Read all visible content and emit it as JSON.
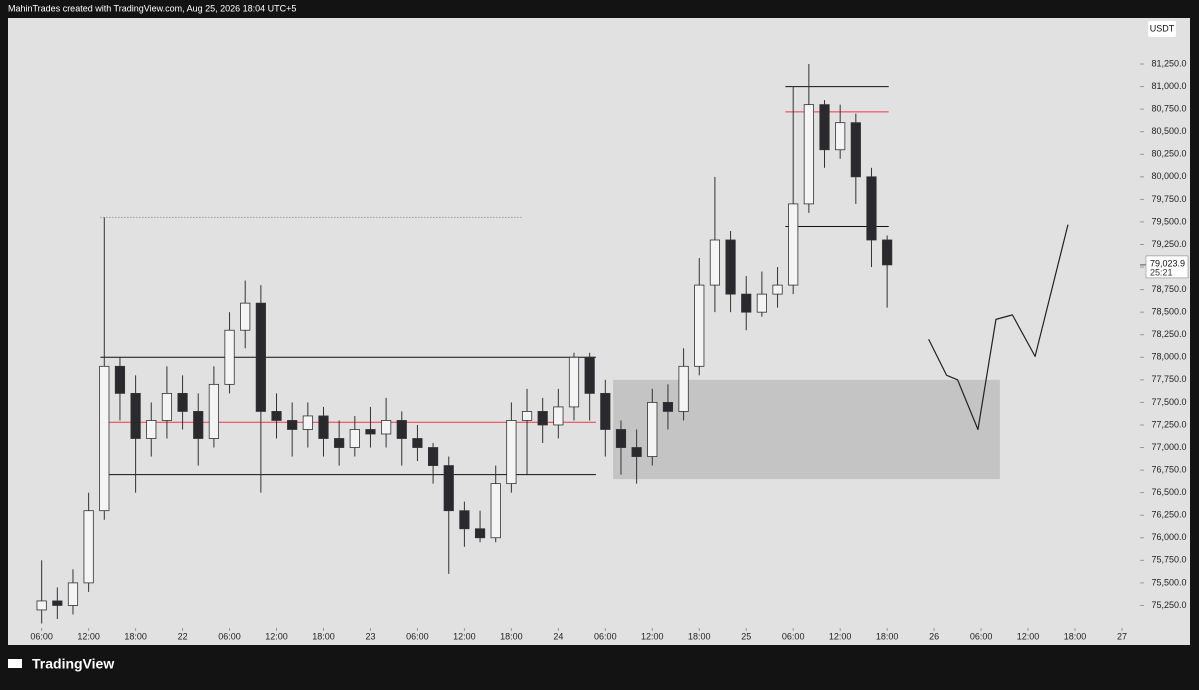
{
  "header": "MahinTrades created with TradingView.com, Aug 25, 2026 18:04 UTC+5",
  "logo": "TradingView",
  "chart_data": {
    "type": "candlestick",
    "currency": "USDT",
    "xlim": [
      -4.3,
      140.3
    ],
    "ylim": [
      75000,
      81760
    ],
    "xticks": [
      {
        "value": 0,
        "label": "06:00"
      },
      {
        "value": 6,
        "label": "12:00"
      },
      {
        "value": 12,
        "label": "18:00"
      },
      {
        "value": 18,
        "label": "22"
      },
      {
        "value": 24,
        "label": "06:00"
      },
      {
        "value": 30,
        "label": "12:00"
      },
      {
        "value": 36,
        "label": "18:00"
      },
      {
        "value": 42,
        "label": "23"
      },
      {
        "value": 48,
        "label": "06:00"
      },
      {
        "value": 54,
        "label": "12:00"
      },
      {
        "value": 60,
        "label": "18:00"
      },
      {
        "value": 66,
        "label": "24"
      },
      {
        "value": 72,
        "label": "06:00"
      },
      {
        "value": 78,
        "label": "12:00"
      },
      {
        "value": 84,
        "label": "18:00"
      },
      {
        "value": 90,
        "label": "25"
      },
      {
        "value": 96,
        "label": "06:00"
      },
      {
        "value": 102,
        "label": "12:00"
      },
      {
        "value": 108,
        "label": "18:00"
      },
      {
        "value": 114,
        "label": "26"
      },
      {
        "value": 120,
        "label": "06:00"
      },
      {
        "value": 126,
        "label": "12:00"
      },
      {
        "value": 132,
        "label": "18:00"
      },
      {
        "value": 138,
        "label": "27"
      }
    ],
    "yticks": [
      {
        "value": 75250,
        "label": "75,250.0"
      },
      {
        "value": 75500,
        "label": "75,500.0"
      },
      {
        "value": 75750,
        "label": "75,750.0"
      },
      {
        "value": 76000,
        "label": "76,000.0"
      },
      {
        "value": 76250,
        "label": "76,250.0"
      },
      {
        "value": 76500,
        "label": "76,500.0"
      },
      {
        "value": 76750,
        "label": "76,750.0"
      },
      {
        "value": 77000,
        "label": "77,000.0"
      },
      {
        "value": 77250,
        "label": "77,250.0"
      },
      {
        "value": 77500,
        "label": "77,500.0"
      },
      {
        "value": 77750,
        "label": "77,750.0"
      },
      {
        "value": 78000,
        "label": "78,000.0"
      },
      {
        "value": 78250,
        "label": "78,250.0"
      },
      {
        "value": 78500,
        "label": "78,500.0"
      },
      {
        "value": 78750,
        "label": "78,750.0"
      },
      {
        "value": 79000,
        "label": "79,000.0"
      },
      {
        "value": 79250,
        "label": "79,250.0"
      },
      {
        "value": 79500,
        "label": "79,500.0"
      },
      {
        "value": 79750,
        "label": "79,750.0"
      },
      {
        "value": 80000,
        "label": "80,000.0"
      },
      {
        "value": 80250,
        "label": "80,250.0"
      },
      {
        "value": 80500,
        "label": "80,500.0"
      },
      {
        "value": 80750,
        "label": "80,750.0"
      },
      {
        "value": 81000,
        "label": "81,000.0"
      },
      {
        "value": 81250,
        "label": "81,250.0"
      }
    ],
    "up_color": "#f4f4f4",
    "down_color": "#2a2a2e",
    "x": [
      0,
      2,
      4,
      6,
      8,
      10,
      12,
      14,
      16,
      18,
      20,
      22,
      24,
      26,
      28,
      30,
      32,
      34,
      36,
      38,
      40,
      42,
      44,
      46,
      48,
      50,
      52,
      54,
      56,
      58,
      60,
      62,
      64,
      66,
      68,
      70,
      72,
      74,
      76,
      78,
      80,
      82,
      84,
      86,
      88,
      90,
      92,
      94,
      96,
      98,
      100,
      102,
      104,
      106,
      108
    ],
    "open": [
      75200,
      75300,
      75250,
      75500,
      76300,
      77900,
      77600,
      77100,
      77300,
      77600,
      77400,
      77100,
      77700,
      78300,
      78600,
      77400,
      77300,
      77200,
      77350,
      77100,
      77000,
      77200,
      77150,
      77300,
      77100,
      77000,
      76800,
      76300,
      76100,
      76000,
      76600,
      77300,
      77400,
      77250,
      77450,
      78000,
      77600,
      77200,
      77000,
      76900,
      77500,
      77400,
      77900,
      78800,
      79300,
      78700,
      78500,
      78700,
      78800,
      79700,
      80800,
      80300,
      80600,
      80000,
      79300
    ],
    "high": [
      75750,
      75450,
      75650,
      76500,
      79550,
      78000,
      77800,
      77500,
      77900,
      77800,
      77600,
      77900,
      78500,
      78850,
      78800,
      77600,
      77500,
      77500,
      77450,
      77300,
      77350,
      77450,
      77550,
      77400,
      77250,
      77050,
      76900,
      76400,
      76300,
      76800,
      77500,
      77650,
      77550,
      77650,
      78050,
      78050,
      77750,
      77300,
      77200,
      77650,
      77700,
      78100,
      79100,
      80000,
      79400,
      78900,
      78950,
      79000,
      81000,
      81250,
      80850,
      80800,
      80700,
      80100,
      79350
    ],
    "low": [
      75050,
      75100,
      75150,
      75400,
      76200,
      77300,
      76500,
      76900,
      77100,
      77200,
      76800,
      77000,
      77600,
      78100,
      76500,
      77100,
      76900,
      77000,
      76900,
      76800,
      76900,
      77000,
      77000,
      76800,
      76850,
      76600,
      75600,
      75900,
      75950,
      75950,
      76500,
      76700,
      77050,
      77100,
      77300,
      77300,
      76900,
      76700,
      76600,
      76800,
      77200,
      77300,
      77800,
      78500,
      78500,
      78300,
      78450,
      78550,
      78700,
      79600,
      80100,
      80200,
      79700,
      79000,
      78550
    ],
    "close": [
      75300,
      75250,
      75500,
      76300,
      77900,
      77600,
      77100,
      77300,
      77600,
      77400,
      77100,
      77700,
      78300,
      78600,
      77400,
      77300,
      77200,
      77350,
      77100,
      77000,
      77200,
      77150,
      77300,
      77100,
      77000,
      76800,
      76300,
      76100,
      76000,
      76600,
      77300,
      77400,
      77250,
      77450,
      78000,
      77600,
      77200,
      77000,
      76900,
      77500,
      77400,
      77900,
      78800,
      79300,
      78700,
      78500,
      78700,
      78800,
      79700,
      80800,
      80300,
      80600,
      80000,
      79300,
      79023.9
    ],
    "last_price": 79023.9,
    "last_price_label": "79,023.9",
    "countdown": "25:21",
    "levels": [
      {
        "price": 78000,
        "x": [
          7.5,
          70.8
        ],
        "color": "#111111"
      },
      {
        "price": 77280,
        "x": [
          7.5,
          70.8
        ],
        "color": "#f23645"
      },
      {
        "price": 76700,
        "x": [
          7.5,
          70.8
        ],
        "color": "#111111"
      },
      {
        "price": 81000,
        "x": [
          95,
          108.2
        ],
        "color": "#111111"
      },
      {
        "price": 80720,
        "x": [
          95,
          108.2
        ],
        "color": "#f23645"
      },
      {
        "price": 79450,
        "x": [
          95,
          108.2
        ],
        "color": "#111111"
      }
    ],
    "dotted_level": {
      "price": 79550,
      "x": [
        7.5,
        61.3
      ],
      "color": "#777777"
    },
    "zone": {
      "x": [
        73,
        122.4
      ],
      "price": [
        76650,
        77750
      ],
      "color": "#c4c4c4"
    },
    "projection": {
      "x": [
        113.3,
        115.6,
        117,
        119.6,
        121.9,
        124,
        126.9,
        131.1
      ],
      "y": [
        78200,
        77800,
        77750,
        77200,
        78420,
        78470,
        78010,
        79470
      ],
      "color": "#222222"
    }
  }
}
